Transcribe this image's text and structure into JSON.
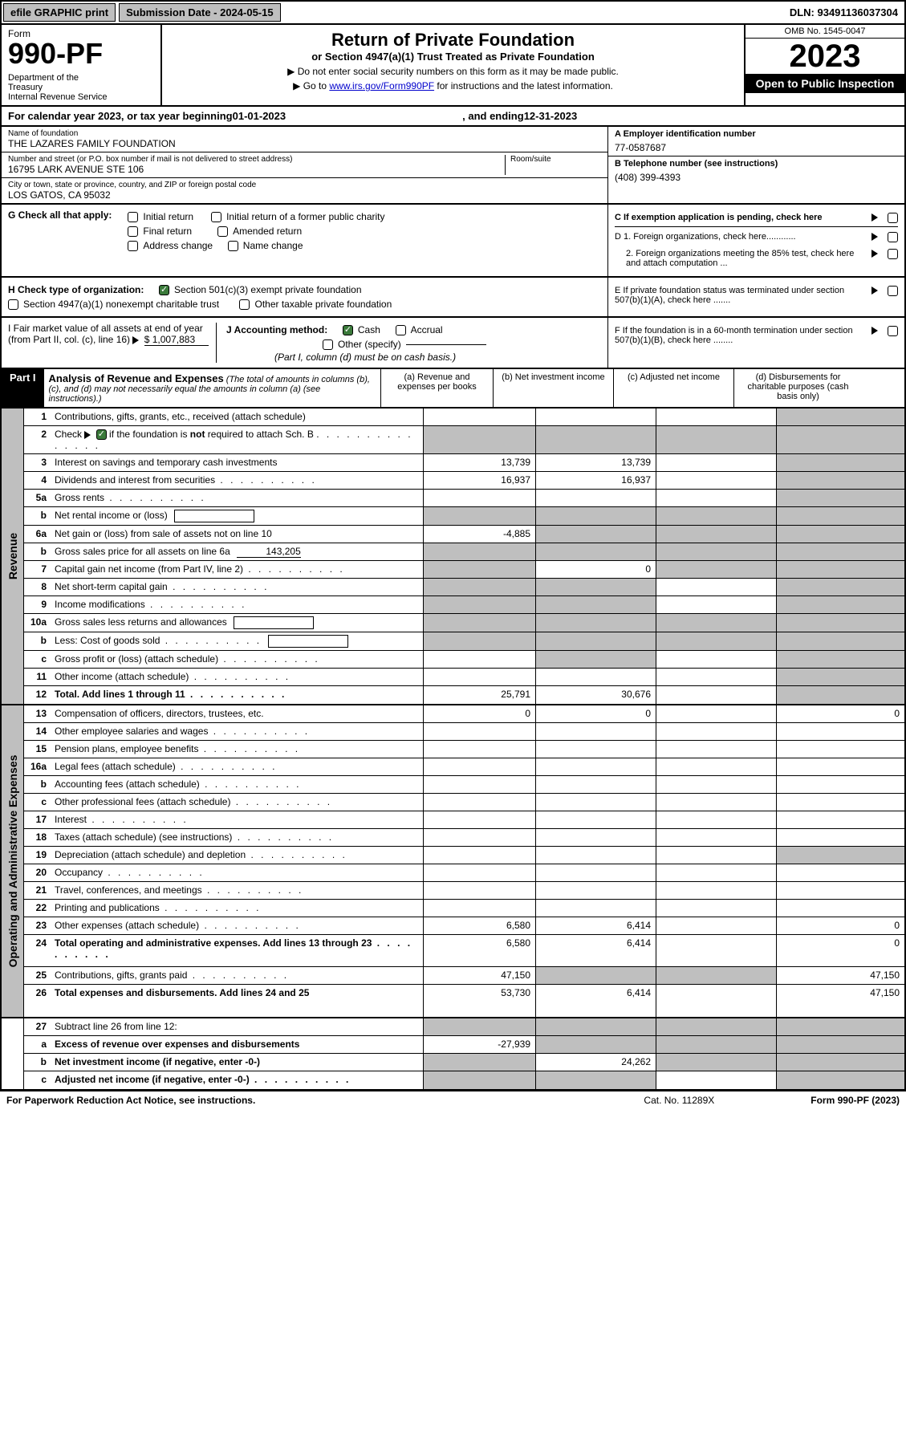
{
  "top": {
    "efile": "efile GRAPHIC print",
    "submission": "Submission Date - 2024-05-15",
    "dln": "DLN: 93491136037304"
  },
  "header": {
    "form_word": "Form",
    "form_num": "990-PF",
    "dept": "Department of the Treasury\nInternal Revenue Service",
    "title": "Return of Private Foundation",
    "subtitle": "or Section 4947(a)(1) Trust Treated as Private Foundation",
    "instr1": "▶ Do not enter social security numbers on this form as it may be made public.",
    "instr2_pre": "▶ Go to ",
    "instr2_link": "www.irs.gov/Form990PF",
    "instr2_post": " for instructions and the latest information.",
    "omb": "OMB No. 1545-0047",
    "year": "2023",
    "open": "Open to Public Inspection"
  },
  "calyear": {
    "pre": "For calendar year 2023, or tax year beginning ",
    "begin": "01-01-2023",
    "mid": ", and ending ",
    "end": "12-31-2023"
  },
  "id": {
    "name_lbl": "Name of foundation",
    "name": "THE LAZARES FAMILY FOUNDATION",
    "addr_lbl": "Number and street (or P.O. box number if mail is not delivered to street address)",
    "addr": "16795 LARK AVENUE STE 106",
    "room_lbl": "Room/suite",
    "room": "",
    "city_lbl": "City or town, state or province, country, and ZIP or foreign postal code",
    "city": "LOS GATOS, CA  95032",
    "ein_lbl": "A Employer identification number",
    "ein": "77-0587687",
    "phone_lbl": "B Telephone number (see instructions)",
    "phone": "(408) 399-4393",
    "c_lbl": "C If exemption application is pending, check here",
    "d1": "D 1. Foreign organizations, check here............",
    "d2": "2. Foreign organizations meeting the 85% test, check here and attach computation ...",
    "e_lbl": "E  If private foundation status was terminated under section 507(b)(1)(A), check here .......",
    "f_lbl": "F  If the foundation is in a 60-month termination under section 507(b)(1)(B), check here ........"
  },
  "g": {
    "label": "G Check all that apply:",
    "opts": [
      "Initial return",
      "Initial return of a former public charity",
      "Final return",
      "Amended return",
      "Address change",
      "Name change"
    ]
  },
  "h": {
    "label": "H Check type of organization:",
    "opt1": "Section 501(c)(3) exempt private foundation",
    "opt2": "Section 4947(a)(1) nonexempt charitable trust",
    "opt3": "Other taxable private foundation"
  },
  "i": {
    "label": "I Fair market value of all assets at end of year (from Part II, col. (c), line 16)",
    "val": "$  1,007,883"
  },
  "j": {
    "label": "J Accounting method:",
    "cash": "Cash",
    "accrual": "Accrual",
    "other": "Other (specify)",
    "note": "(Part I, column (d) must be on cash basis.)"
  },
  "part1": {
    "label": "Part I",
    "title": "Analysis of Revenue and Expenses",
    "subtitle": "(The total of amounts in columns (b), (c), and (d) may not necessarily equal the amounts in column (a) (see instructions).)",
    "col_a": "(a)   Revenue and expenses per books",
    "col_b": "(b)   Net investment income",
    "col_c": "(c)   Adjusted net income",
    "col_d": "(d)   Disbursements for charitable purposes (cash basis only)"
  },
  "sides": {
    "revenue": "Revenue",
    "expenses": "Operating and Administrative Expenses"
  },
  "rows": [
    {
      "n": "1",
      "desc": "Contributions, gifts, grants, etc., received (attach schedule)",
      "a": "",
      "b": "",
      "c": "",
      "d": "shaded"
    },
    {
      "n": "2",
      "desc": "Check ▶ ☑ if the foundation is not required to attach Sch. B",
      "dots": true,
      "a": "shaded",
      "b": "shaded",
      "c": "shaded",
      "d": "shaded",
      "not_bold_chk": true
    },
    {
      "n": "3",
      "desc": "Interest on savings and temporary cash investments",
      "a": "13,739",
      "b": "13,739",
      "c": "",
      "d": "shaded"
    },
    {
      "n": "4",
      "desc": "Dividends and interest from securities",
      "dots": true,
      "a": "16,937",
      "b": "16,937",
      "c": "",
      "d": "shaded"
    },
    {
      "n": "5a",
      "desc": "Gross rents",
      "dots": true,
      "a": "",
      "b": "",
      "c": "",
      "d": "shaded"
    },
    {
      "n": "b",
      "desc": "Net rental income or (loss)",
      "inline_box": true,
      "a": "shaded",
      "b": "shaded",
      "c": "shaded",
      "d": "shaded"
    },
    {
      "n": "6a",
      "desc": "Net gain or (loss) from sale of assets not on line 10",
      "a": "-4,885",
      "b": "shaded",
      "c": "shaded",
      "d": "shaded"
    },
    {
      "n": "b",
      "desc": "Gross sales price for all assets on line 6a",
      "inline_val": "143,205",
      "a": "shaded",
      "b": "shaded",
      "c": "shaded",
      "d": "shaded"
    },
    {
      "n": "7",
      "desc": "Capital gain net income (from Part IV, line 2)",
      "dots": true,
      "a": "shaded",
      "b": "0",
      "c": "shaded",
      "d": "shaded"
    },
    {
      "n": "8",
      "desc": "Net short-term capital gain",
      "dots": true,
      "a": "shaded",
      "b": "shaded",
      "c": "",
      "d": "shaded"
    },
    {
      "n": "9",
      "desc": "Income modifications",
      "dots": true,
      "a": "shaded",
      "b": "shaded",
      "c": "",
      "d": "shaded"
    },
    {
      "n": "10a",
      "desc": "Gross sales less returns and allowances",
      "inline_box": true,
      "a": "shaded",
      "b": "shaded",
      "c": "shaded",
      "d": "shaded"
    },
    {
      "n": "b",
      "desc": "Less: Cost of goods sold",
      "dots": true,
      "inline_box": true,
      "a": "shaded",
      "b": "shaded",
      "c": "shaded",
      "d": "shaded"
    },
    {
      "n": "c",
      "desc": "Gross profit or (loss) (attach schedule)",
      "dots": true,
      "a": "",
      "b": "shaded",
      "c": "",
      "d": "shaded"
    },
    {
      "n": "11",
      "desc": "Other income (attach schedule)",
      "dots": true,
      "a": "",
      "b": "",
      "c": "",
      "d": "shaded"
    },
    {
      "n": "12",
      "desc": "Total. Add lines 1 through 11",
      "dots": true,
      "bold": true,
      "a": "25,791",
      "b": "30,676",
      "c": "",
      "d": "shaded"
    }
  ],
  "exp_rows": [
    {
      "n": "13",
      "desc": "Compensation of officers, directors, trustees, etc.",
      "a": "0",
      "b": "0",
      "c": "",
      "d": "0"
    },
    {
      "n": "14",
      "desc": "Other employee salaries and wages",
      "dots": true,
      "a": "",
      "b": "",
      "c": "",
      "d": ""
    },
    {
      "n": "15",
      "desc": "Pension plans, employee benefits",
      "dots": true,
      "a": "",
      "b": "",
      "c": "",
      "d": ""
    },
    {
      "n": "16a",
      "desc": "Legal fees (attach schedule)",
      "dots": true,
      "a": "",
      "b": "",
      "c": "",
      "d": ""
    },
    {
      "n": "b",
      "desc": "Accounting fees (attach schedule)",
      "dots": true,
      "a": "",
      "b": "",
      "c": "",
      "d": ""
    },
    {
      "n": "c",
      "desc": "Other professional fees (attach schedule)",
      "dots": true,
      "a": "",
      "b": "",
      "c": "",
      "d": ""
    },
    {
      "n": "17",
      "desc": "Interest",
      "dots": true,
      "a": "",
      "b": "",
      "c": "",
      "d": ""
    },
    {
      "n": "18",
      "desc": "Taxes (attach schedule) (see instructions)",
      "dots": true,
      "a": "",
      "b": "",
      "c": "",
      "d": ""
    },
    {
      "n": "19",
      "desc": "Depreciation (attach schedule) and depletion",
      "dots": true,
      "a": "",
      "b": "",
      "c": "",
      "d": "shaded"
    },
    {
      "n": "20",
      "desc": "Occupancy",
      "dots": true,
      "a": "",
      "b": "",
      "c": "",
      "d": ""
    },
    {
      "n": "21",
      "desc": "Travel, conferences, and meetings",
      "dots": true,
      "a": "",
      "b": "",
      "c": "",
      "d": ""
    },
    {
      "n": "22",
      "desc": "Printing and publications",
      "dots": true,
      "a": "",
      "b": "",
      "c": "",
      "d": ""
    },
    {
      "n": "23",
      "desc": "Other expenses (attach schedule)",
      "dots": true,
      "a": "6,580",
      "b": "6,414",
      "c": "",
      "d": "0"
    },
    {
      "n": "24",
      "desc": "Total operating and administrative expenses. Add lines 13 through 23",
      "dots": true,
      "bold": true,
      "a": "6,580",
      "b": "6,414",
      "c": "",
      "d": "0",
      "tall": true
    },
    {
      "n": "25",
      "desc": "Contributions, gifts, grants paid",
      "dots": true,
      "a": "47,150",
      "b": "shaded",
      "c": "shaded",
      "d": "47,150"
    },
    {
      "n": "26",
      "desc": "Total expenses and disbursements. Add lines 24 and 25",
      "bold": true,
      "a": "53,730",
      "b": "6,414",
      "c": "",
      "d": "47,150",
      "tall": true
    }
  ],
  "bottom_rows": [
    {
      "n": "27",
      "desc": "Subtract line 26 from line 12:",
      "a": "shaded",
      "b": "shaded",
      "c": "shaded",
      "d": "shaded"
    },
    {
      "n": "a",
      "desc": "Excess of revenue over expenses and disbursements",
      "bold": true,
      "a": "-27,939",
      "b": "shaded",
      "c": "shaded",
      "d": "shaded"
    },
    {
      "n": "b",
      "desc": "Net investment income (if negative, enter -0-)",
      "bold": true,
      "a": "shaded",
      "b": "24,262",
      "c": "shaded",
      "d": "shaded"
    },
    {
      "n": "c",
      "desc": "Adjusted net income (if negative, enter -0-)",
      "dots": true,
      "bold": true,
      "a": "shaded",
      "b": "shaded",
      "c": "",
      "d": "shaded"
    }
  ],
  "footer": {
    "left": "For Paperwork Reduction Act Notice, see instructions.",
    "cat": "Cat. No. 11289X",
    "right": "Form 990-PF (2023)"
  }
}
